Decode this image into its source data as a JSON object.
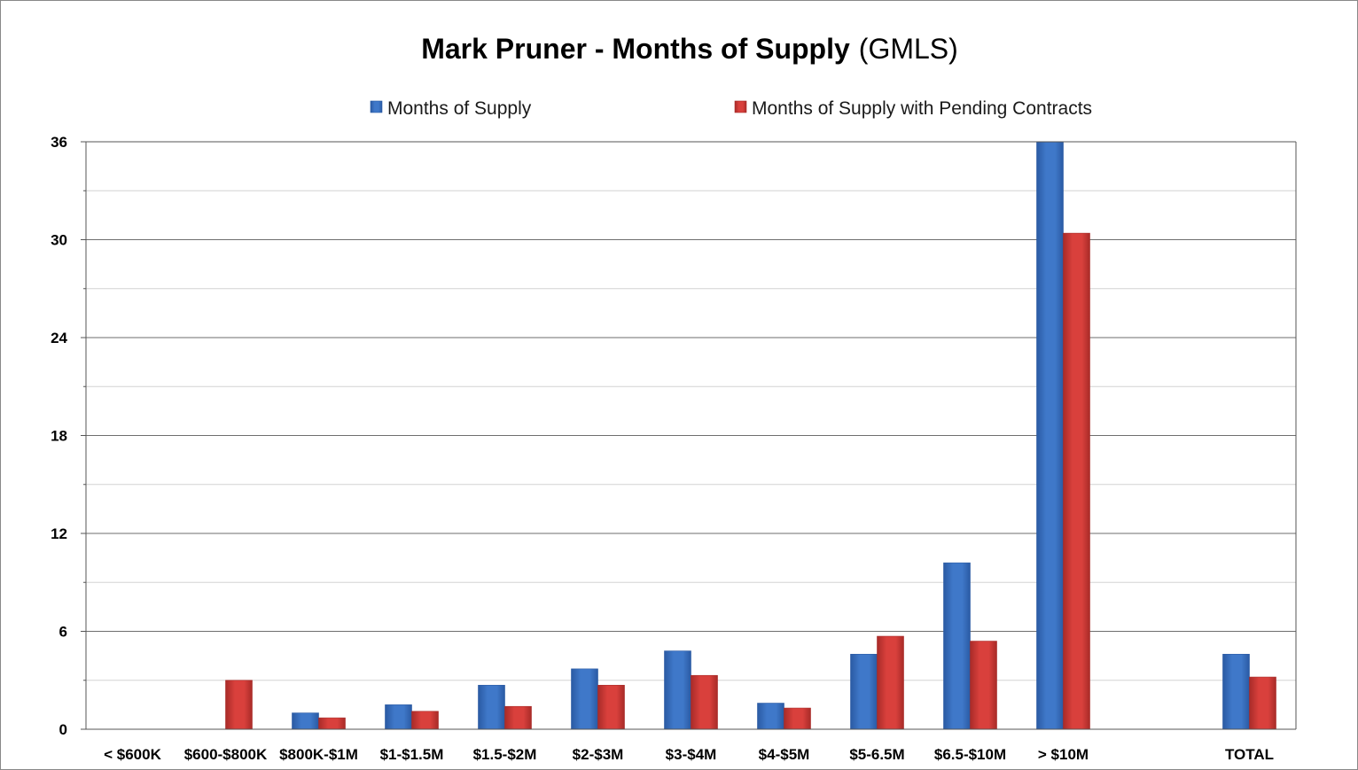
{
  "chart_data": {
    "type": "bar",
    "title": "Mark Pruner - Months of Supply",
    "subtitle": "(GMLS)",
    "xlabel": "",
    "ylabel": "",
    "ylim": [
      0,
      36
    ],
    "yticks": [
      0,
      6,
      12,
      18,
      24,
      30,
      36
    ],
    "grid": true,
    "legend_position": "top",
    "categories": [
      "< $600K",
      "$600-$800K",
      "$800K-$1M",
      "$1-$1.5M",
      "$1.5-$2M",
      "$2-$3M",
      "$3-$4M",
      "$4-$5M",
      "$5-6.5M",
      "$6.5-$10M",
      "> $10M",
      "",
      "TOTAL"
    ],
    "series": [
      {
        "name": "Months of Supply",
        "color": "#3f78c9",
        "color_dark": "#2a5aa3",
        "values": [
          0,
          0,
          1.0,
          1.5,
          2.7,
          3.7,
          4.8,
          1.6,
          4.6,
          10.2,
          36,
          null,
          4.6
        ]
      },
      {
        "name": "Months of Supply with Pending Contracts",
        "color": "#d9403c",
        "color_dark": "#a82b28",
        "values": [
          0,
          3.0,
          0.7,
          1.1,
          1.4,
          2.7,
          3.3,
          1.3,
          5.7,
          5.4,
          30.4,
          null,
          3.2
        ]
      }
    ]
  }
}
